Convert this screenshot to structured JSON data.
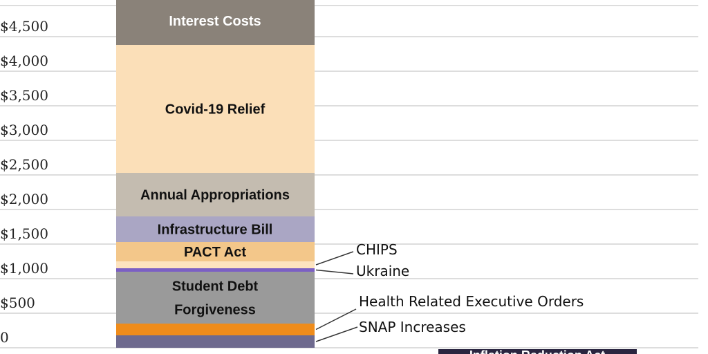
{
  "chart_data": {
    "type": "bar",
    "stacked": true,
    "categories": [
      ""
    ],
    "ylim": [
      0,
      5000
    ],
    "grid": true,
    "y_ticks": [
      {
        "value": 0,
        "label": "0"
      },
      {
        "value": 500,
        "label": "$500"
      },
      {
        "value": 1000,
        "label": "$1,000"
      },
      {
        "value": 1500,
        "label": "$1,500"
      },
      {
        "value": 2000,
        "label": "$2,000"
      },
      {
        "value": 2500,
        "label": "$2,500"
      },
      {
        "value": 3000,
        "label": "$3,000"
      },
      {
        "value": 3500,
        "label": "$3,500"
      },
      {
        "value": 4000,
        "label": "$4,000"
      },
      {
        "value": 4500,
        "label": "$4,500"
      }
    ],
    "series": [
      {
        "name": "SNAP Increases",
        "values": [
          180
        ],
        "color": "#6e6a8e",
        "label_position": "callout"
      },
      {
        "name": "Health Related Executive Orders",
        "values": [
          170
        ],
        "color": "#ef8c1b",
        "label_position": "callout"
      },
      {
        "name": "Student Debt Forgiveness",
        "values": [
          750
        ],
        "label_lines": [
          "Student Debt",
          "Forgiveness"
        ],
        "color": "#9a9a9a",
        "text_color": "#111111",
        "label_position": "inside"
      },
      {
        "name": "Ukraine",
        "values": [
          50
        ],
        "color": "#7b5fc4",
        "label_position": "callout"
      },
      {
        "name": "CHIPS",
        "values": [
          100
        ],
        "color": "#fde3bf",
        "label_position": "callout"
      },
      {
        "name": "PACT Act",
        "values": [
          280
        ],
        "color": "#f3c78a",
        "text_color": "#111111",
        "label_position": "inside"
      },
      {
        "name": "Infrastructure Bill",
        "values": [
          370
        ],
        "color": "#aaa6c4",
        "text_color": "#111111",
        "label_position": "inside"
      },
      {
        "name": "Annual Appropriations",
        "values": [
          630
        ],
        "color": "#c4bcb0",
        "text_color": "#111111",
        "label_position": "inside"
      },
      {
        "name": "Covid-19 Relief",
        "values": [
          1850
        ],
        "color": "#fbdfb8",
        "text_color": "#111111",
        "label_position": "inside"
      },
      {
        "name": "Interest Costs",
        "values": [
          700
        ],
        "color": "#8a8279",
        "text_color": "#ffffff",
        "label_position": "inside"
      }
    ],
    "extra_label": {
      "text": "Inflation Reduction Act",
      "color": "#2a2540"
    }
  }
}
